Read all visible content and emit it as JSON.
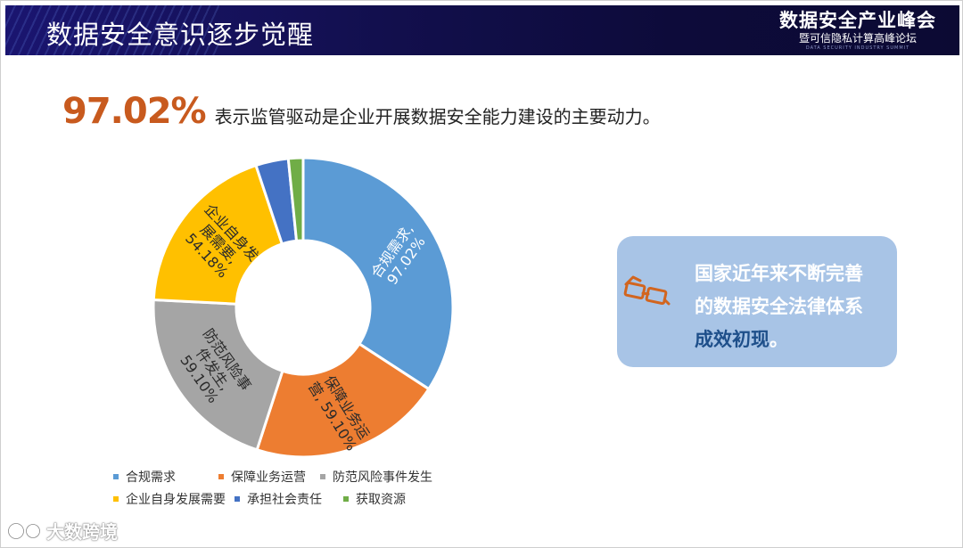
{
  "header": {
    "title": "数据安全意识逐步觉醒",
    "summit_title": "数据安全产业峰会",
    "summit_subtitle": "暨可信隐私计算高峰论坛",
    "summit_english": "DATA SECURITY INDUSTRY SUMMIT"
  },
  "headline": {
    "percent": "97.02%",
    "text": "表示监管驱动是企业开展数据安全能力建设的主要动力。"
  },
  "chart_data": {
    "type": "pie",
    "donut": true,
    "categories": [
      "合规需求",
      "保障业务运营",
      "防范风险事件发生",
      "企业自身发展需要",
      "承担社会责任",
      "获取资源"
    ],
    "values": [
      97.02,
      59.1,
      59.1,
      54.18,
      10.0,
      4.5
    ],
    "colors": [
      "#5b9bd5",
      "#ed7d31",
      "#a5a5a5",
      "#ffc000",
      "#4472c4",
      "#70ad47"
    ],
    "data_labels": [
      [
        "合规需求,",
        "97.02%"
      ],
      [
        "保障业务运",
        "营, 59.10%"
      ],
      [
        "防范风险事",
        "件发生,",
        "59.10%"
      ],
      [
        "企业自身发",
        "展需要,",
        "54.18%"
      ],
      [],
      []
    ],
    "legend_position": "bottom-left"
  },
  "callout": {
    "line1": "国家近年来不断完善",
    "line2": "的数据安全法律体系",
    "line3_em": "成效初现",
    "line3_end": "。"
  },
  "watermark": {
    "text": "大数跨境"
  }
}
